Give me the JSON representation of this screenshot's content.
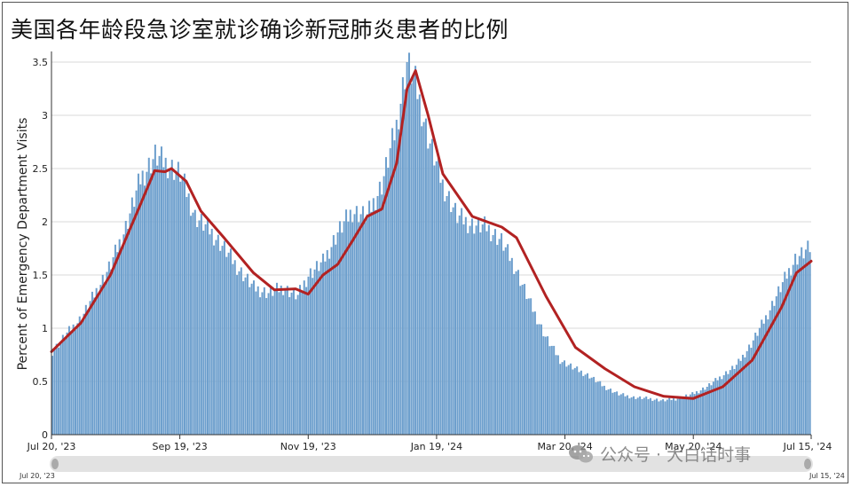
{
  "title": "美国各年龄段急诊室就诊确诊新冠肺炎患者的比例",
  "watermark": "公众号 · 大白话时事",
  "navigator": {
    "start_label": "Jul 20, '23",
    "end_label": "Jul 15, '24"
  },
  "colors": {
    "bar": "#6d9fcd",
    "bar_edge": "#4f86ba",
    "trend": "#b22222",
    "grid": "#d9d9d9",
    "axis": "#333333"
  },
  "chart_data": {
    "type": "bar",
    "title": "美国各年龄段急诊室就诊确诊新冠肺炎患者的比例",
    "ylabel": "Percent of Emergency Department Visits",
    "xlabel": "",
    "ylim": [
      0,
      3.6
    ],
    "grid": true,
    "x_start": "2023-07-20",
    "x_end": "2024-07-15",
    "y_ticks": [
      {
        "value": 0,
        "label": "0"
      },
      {
        "value": 0.5,
        "label": "0.5"
      },
      {
        "value": 1,
        "label": "1"
      },
      {
        "value": 1.5,
        "label": "1.5"
      },
      {
        "value": 2,
        "label": "2"
      },
      {
        "value": 2.5,
        "label": "2.5"
      },
      {
        "value": 3,
        "label": "3"
      },
      {
        "value": 3.5,
        "label": "3.5"
      }
    ],
    "x_ticks": [
      {
        "date": "2023-07-20",
        "label": "Jul 20, '23"
      },
      {
        "date": "2023-09-19",
        "label": "Sep 19, '23"
      },
      {
        "date": "2023-11-19",
        "label": "Nov 19, '23"
      },
      {
        "date": "2024-01-19",
        "label": "Jan 19, '24"
      },
      {
        "date": "2024-03-20",
        "label": "Mar 20, '24"
      },
      {
        "date": "2024-05-20",
        "label": "May 20, '24"
      },
      {
        "date": "2024-07-15",
        "label": "Jul 15, '24"
      }
    ],
    "series": [
      {
        "type": "bar",
        "points": [
          [
            "2023-07-20",
            0.78
          ],
          [
            "2023-07-27",
            0.95
          ],
          [
            "2023-08-03",
            1.1
          ],
          [
            "2023-08-10",
            1.35
          ],
          [
            "2023-08-17",
            1.6
          ],
          [
            "2023-08-24",
            1.95
          ],
          [
            "2023-08-31",
            2.4
          ],
          [
            "2023-09-07",
            2.62
          ],
          [
            "2023-09-12",
            2.55
          ],
          [
            "2023-09-19",
            2.45
          ],
          [
            "2023-09-26",
            2.05
          ],
          [
            "2023-10-03",
            1.92
          ],
          [
            "2023-10-10",
            1.75
          ],
          [
            "2023-10-17",
            1.55
          ],
          [
            "2023-10-24",
            1.38
          ],
          [
            "2023-10-31",
            1.33
          ],
          [
            "2023-11-07",
            1.38
          ],
          [
            "2023-11-14",
            1.3
          ],
          [
            "2023-11-19",
            1.5
          ],
          [
            "2023-11-26",
            1.62
          ],
          [
            "2023-12-03",
            1.9
          ],
          [
            "2023-12-10",
            2.1
          ],
          [
            "2023-12-17",
            2.05
          ],
          [
            "2023-12-24",
            2.35
          ],
          [
            "2023-12-31",
            2.9
          ],
          [
            "2024-01-05",
            3.5
          ],
          [
            "2024-01-09",
            3.3
          ],
          [
            "2024-01-15",
            2.8
          ],
          [
            "2024-01-22",
            2.35
          ],
          [
            "2024-01-29",
            2.05
          ],
          [
            "2024-02-05",
            1.97
          ],
          [
            "2024-02-12",
            1.95
          ],
          [
            "2024-02-19",
            1.82
          ],
          [
            "2024-02-26",
            1.55
          ],
          [
            "2024-03-04",
            1.22
          ],
          [
            "2024-03-11",
            0.92
          ],
          [
            "2024-03-18",
            0.7
          ],
          [
            "2024-03-25",
            0.62
          ],
          [
            "2024-04-01",
            0.55
          ],
          [
            "2024-04-08",
            0.45
          ],
          [
            "2024-04-15",
            0.38
          ],
          [
            "2024-04-22",
            0.35
          ],
          [
            "2024-04-29",
            0.34
          ],
          [
            "2024-05-06",
            0.32
          ],
          [
            "2024-05-13",
            0.34
          ],
          [
            "2024-05-20",
            0.38
          ],
          [
            "2024-05-27",
            0.45
          ],
          [
            "2024-06-03",
            0.55
          ],
          [
            "2024-06-10",
            0.65
          ],
          [
            "2024-06-17",
            0.85
          ],
          [
            "2024-06-24",
            1.1
          ],
          [
            "2024-07-01",
            1.38
          ],
          [
            "2024-07-08",
            1.65
          ],
          [
            "2024-07-15",
            1.75
          ]
        ]
      },
      {
        "type": "line",
        "points": [
          [
            "2023-07-20",
            0.78
          ],
          [
            "2023-08-03",
            1.05
          ],
          [
            "2023-08-17",
            1.5
          ],
          [
            "2023-08-31",
            2.15
          ],
          [
            "2023-09-07",
            2.48
          ],
          [
            "2023-09-12",
            2.47
          ],
          [
            "2023-09-15",
            2.5
          ],
          [
            "2023-09-22",
            2.38
          ],
          [
            "2023-09-29",
            2.1
          ],
          [
            "2023-10-10",
            1.85
          ],
          [
            "2023-10-24",
            1.52
          ],
          [
            "2023-11-03",
            1.36
          ],
          [
            "2023-11-13",
            1.37
          ],
          [
            "2023-11-19",
            1.32
          ],
          [
            "2023-11-26",
            1.5
          ],
          [
            "2023-12-03",
            1.6
          ],
          [
            "2023-12-10",
            1.82
          ],
          [
            "2023-12-17",
            2.05
          ],
          [
            "2023-12-24",
            2.12
          ],
          [
            "2023-12-31",
            2.55
          ],
          [
            "2024-01-05",
            3.25
          ],
          [
            "2024-01-09",
            3.42
          ],
          [
            "2024-01-15",
            3.0
          ],
          [
            "2024-01-22",
            2.45
          ],
          [
            "2024-02-05",
            2.05
          ],
          [
            "2024-02-19",
            1.95
          ],
          [
            "2024-02-26",
            1.85
          ],
          [
            "2024-03-11",
            1.3
          ],
          [
            "2024-03-25",
            0.82
          ],
          [
            "2024-04-08",
            0.62
          ],
          [
            "2024-04-22",
            0.45
          ],
          [
            "2024-05-06",
            0.36
          ],
          [
            "2024-05-20",
            0.34
          ],
          [
            "2024-06-03",
            0.45
          ],
          [
            "2024-06-17",
            0.7
          ],
          [
            "2024-07-01",
            1.2
          ],
          [
            "2024-07-08",
            1.52
          ],
          [
            "2024-07-15",
            1.63
          ]
        ]
      }
    ]
  }
}
